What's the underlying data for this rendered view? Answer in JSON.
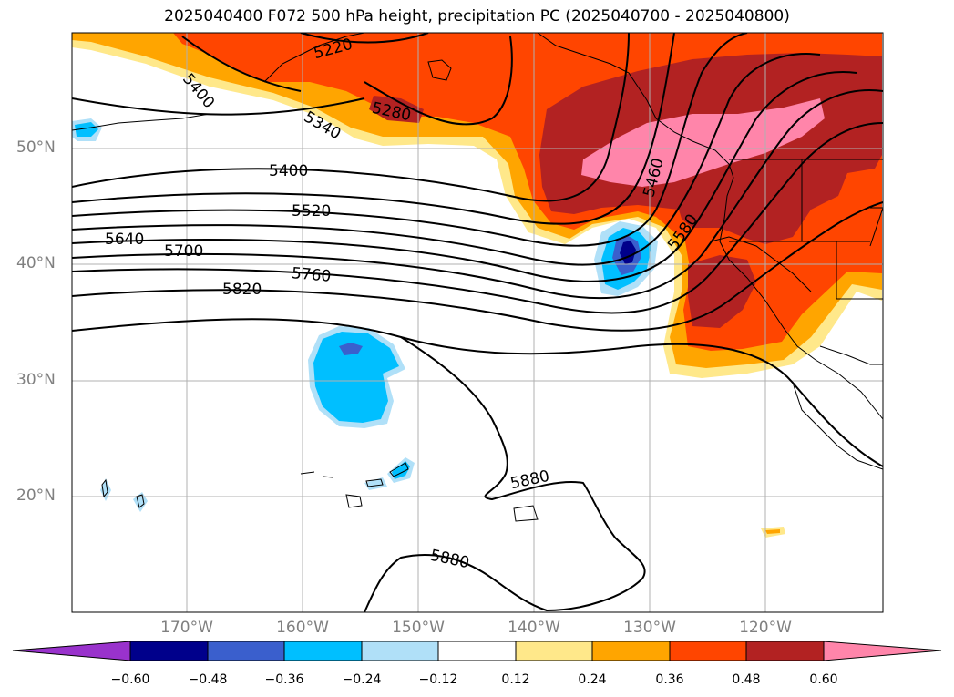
{
  "title": "2025040400 F072 500 hPa height, precipitation PC (2025040700 - 2025040800)",
  "lat_labels": [
    "50°N",
    "40°N",
    "30°N",
    "20°N"
  ],
  "lon_labels": [
    "170°W",
    "160°W",
    "150°W",
    "140°W",
    "130°W",
    "120°W"
  ],
  "contour_labels": [
    "5220",
    "5400",
    "5340",
    "5280",
    "5400",
    "5520",
    "5640",
    "5700",
    "5760",
    "5820",
    "5460",
    "5580",
    "5880",
    "5880"
  ],
  "colorbar": {
    "ticks": [
      "−0.60",
      "−0.48",
      "−0.36",
      "−0.24",
      "−0.12",
      "0.12",
      "0.24",
      "0.36",
      "0.48",
      "0.60"
    ],
    "colors": [
      "#9932cc",
      "#00008b",
      "#3a5fcd",
      "#00bfff",
      "#b0e0f8",
      "#ffffff",
      "#ffe88a",
      "#ffa500",
      "#ff4500",
      "#b22222",
      "#ff85aa"
    ]
  }
}
